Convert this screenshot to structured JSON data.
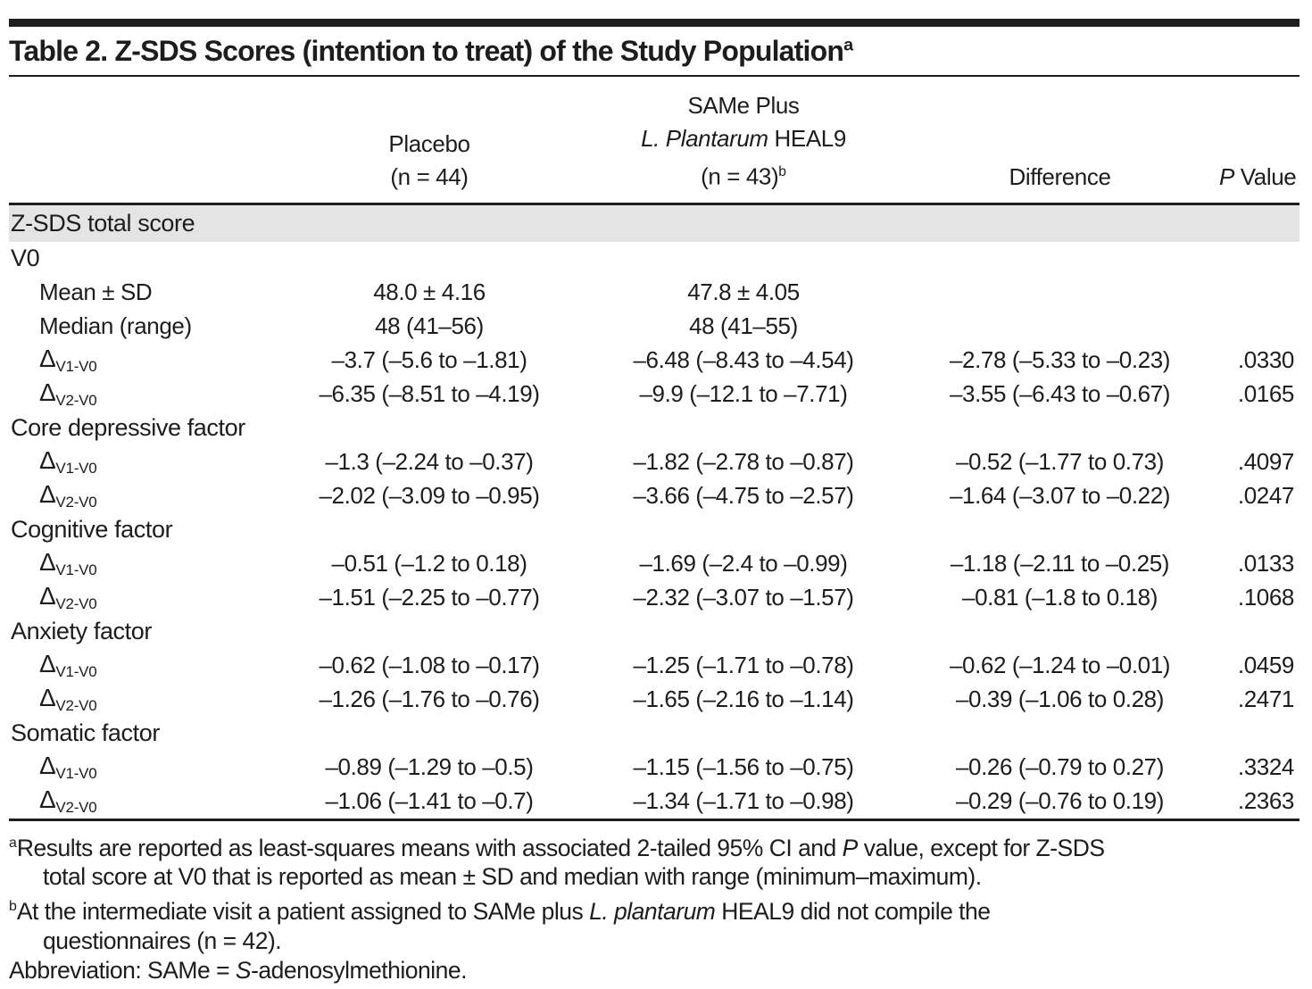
{
  "title": {
    "text": "Table 2. Z-SDS Scores (intention to treat) of the Study Population",
    "sup": "a"
  },
  "header": {
    "placebo_line1": "Placebo",
    "placebo_line2": "(n = 44)",
    "same_line1": "SAMe Plus",
    "same_line2_italic": "L. Plantarum",
    "same_line2_rest": " HEAL9",
    "same_line3": "(n = 43)",
    "same_line3_sup": "b",
    "difference": "Difference",
    "pvalue_italic": "P",
    "pvalue_rest": " Value"
  },
  "rows": [
    {
      "kind": "section",
      "label": "Z-SDS total score"
    },
    {
      "kind": "group",
      "label": "V0"
    },
    {
      "kind": "item",
      "label": "Mean ± SD",
      "cells": [
        "48.0 ± 4.16",
        "47.8 ± 4.05",
        "",
        ""
      ]
    },
    {
      "kind": "item",
      "label": "Median (range)",
      "cells": [
        "48 (41–56)",
        "48 (41–55)",
        "",
        ""
      ]
    },
    {
      "kind": "delta",
      "symbol": "Δ",
      "sub": "V1-V0",
      "cells": [
        "–3.7 (–5.6 to –1.81)",
        "–6.48 (–8.43 to –4.54)",
        "–2.78 (–5.33 to –0.23)",
        ".0330"
      ]
    },
    {
      "kind": "delta",
      "symbol": "Δ",
      "sub": "V2-V0",
      "cells": [
        "–6.35 (–8.51 to  –4.19)",
        "–9.9 (–12.1 to –7.71)",
        "–3.55 (–6.43 to –0.67)",
        ".0165"
      ]
    },
    {
      "kind": "group",
      "label": "Core depressive factor"
    },
    {
      "kind": "delta",
      "symbol": "Δ",
      "sub": "V1-V0",
      "cells": [
        "–1.3 (–2.24 to –0.37)",
        "–1.82 (–2.78 to –0.87)",
        "–0.52 (–1.77 to 0.73)",
        ".4097"
      ]
    },
    {
      "kind": "delta",
      "symbol": "Δ",
      "sub": "V2-V0",
      "cells": [
        "–2.02 (–3.09 to –0.95)",
        "–3.66 (–4.75 to –2.57)",
        "–1.64 (–3.07 to –0.22)",
        ".0247"
      ]
    },
    {
      "kind": "group",
      "label": "Cognitive factor"
    },
    {
      "kind": "delta",
      "symbol": "Δ",
      "sub": "V1-V0",
      "cells": [
        "–0.51 (–1.2 to 0.18)",
        "–1.69 (–2.4 to –0.99)",
        "–1.18 (–2.11 to –0.25)",
        ".0133"
      ]
    },
    {
      "kind": "delta",
      "symbol": "Δ",
      "sub": "V2-V0",
      "cells": [
        "–1.51 (–2.25 to –0.77)",
        "–2.32 (–3.07 to –1.57)",
        "–0.81 (–1.8 to 0.18)",
        ".1068"
      ]
    },
    {
      "kind": "group",
      "label": "Anxiety factor"
    },
    {
      "kind": "delta",
      "symbol": "Δ",
      "sub": "V1-V0",
      "cells": [
        "–0.62 (–1.08 to –0.17)",
        "–1.25 (–1.71 to –0.78)",
        "–0.62 (–1.24 to –0.01)",
        ".0459"
      ]
    },
    {
      "kind": "delta",
      "symbol": "Δ",
      "sub": "V2-V0",
      "cells": [
        "–1.26 (–1.76 to –0.76)",
        "–1.65 (–2.16 to –1.14)",
        "–0.39 (–1.06 to 0.28)",
        ".2471"
      ]
    },
    {
      "kind": "group",
      "label": "Somatic factor"
    },
    {
      "kind": "delta",
      "symbol": "Δ",
      "sub": "V1-V0",
      "cells": [
        "–0.89 (–1.29 to –0.5)",
        "–1.15 (–1.56 to –0.75)",
        "–0.26 (–0.79 to 0.27)",
        ".3324"
      ]
    },
    {
      "kind": "delta",
      "symbol": "Δ",
      "sub": "V2-V0",
      "cells": [
        "–1.06 (–1.41 to –0.7)",
        "–1.34 (–1.71 to –0.98)",
        "–0.29 (–0.76 to 0.19)",
        ".2363"
      ]
    }
  ],
  "footnotes": {
    "a_sup": "a",
    "a_part1": "Results are reported as least-squares means with associated 2-tailed 95% CI and ",
    "a_italic": "P",
    "a_part2": " value, except for Z-SDS",
    "a_line2": "total score at V0 that is reported as mean ± SD and median with range (minimum–maximum).",
    "b_sup": "b",
    "b_part1": "At the intermediate visit a patient assigned to SAMe plus ",
    "b_italic": "L. plantarum",
    "b_part2": " HEAL9 did not compile the",
    "b_line2": "questionnaires (n = 42).",
    "abbr_part1": "Abbreviation: SAMe = ",
    "abbr_italic": "S",
    "abbr_part2": "-adenosylmethionine."
  },
  "colors": {
    "text": "#1d1d1d",
    "section_band": "#e4e4e4",
    "rule": "#1d1d1d"
  }
}
